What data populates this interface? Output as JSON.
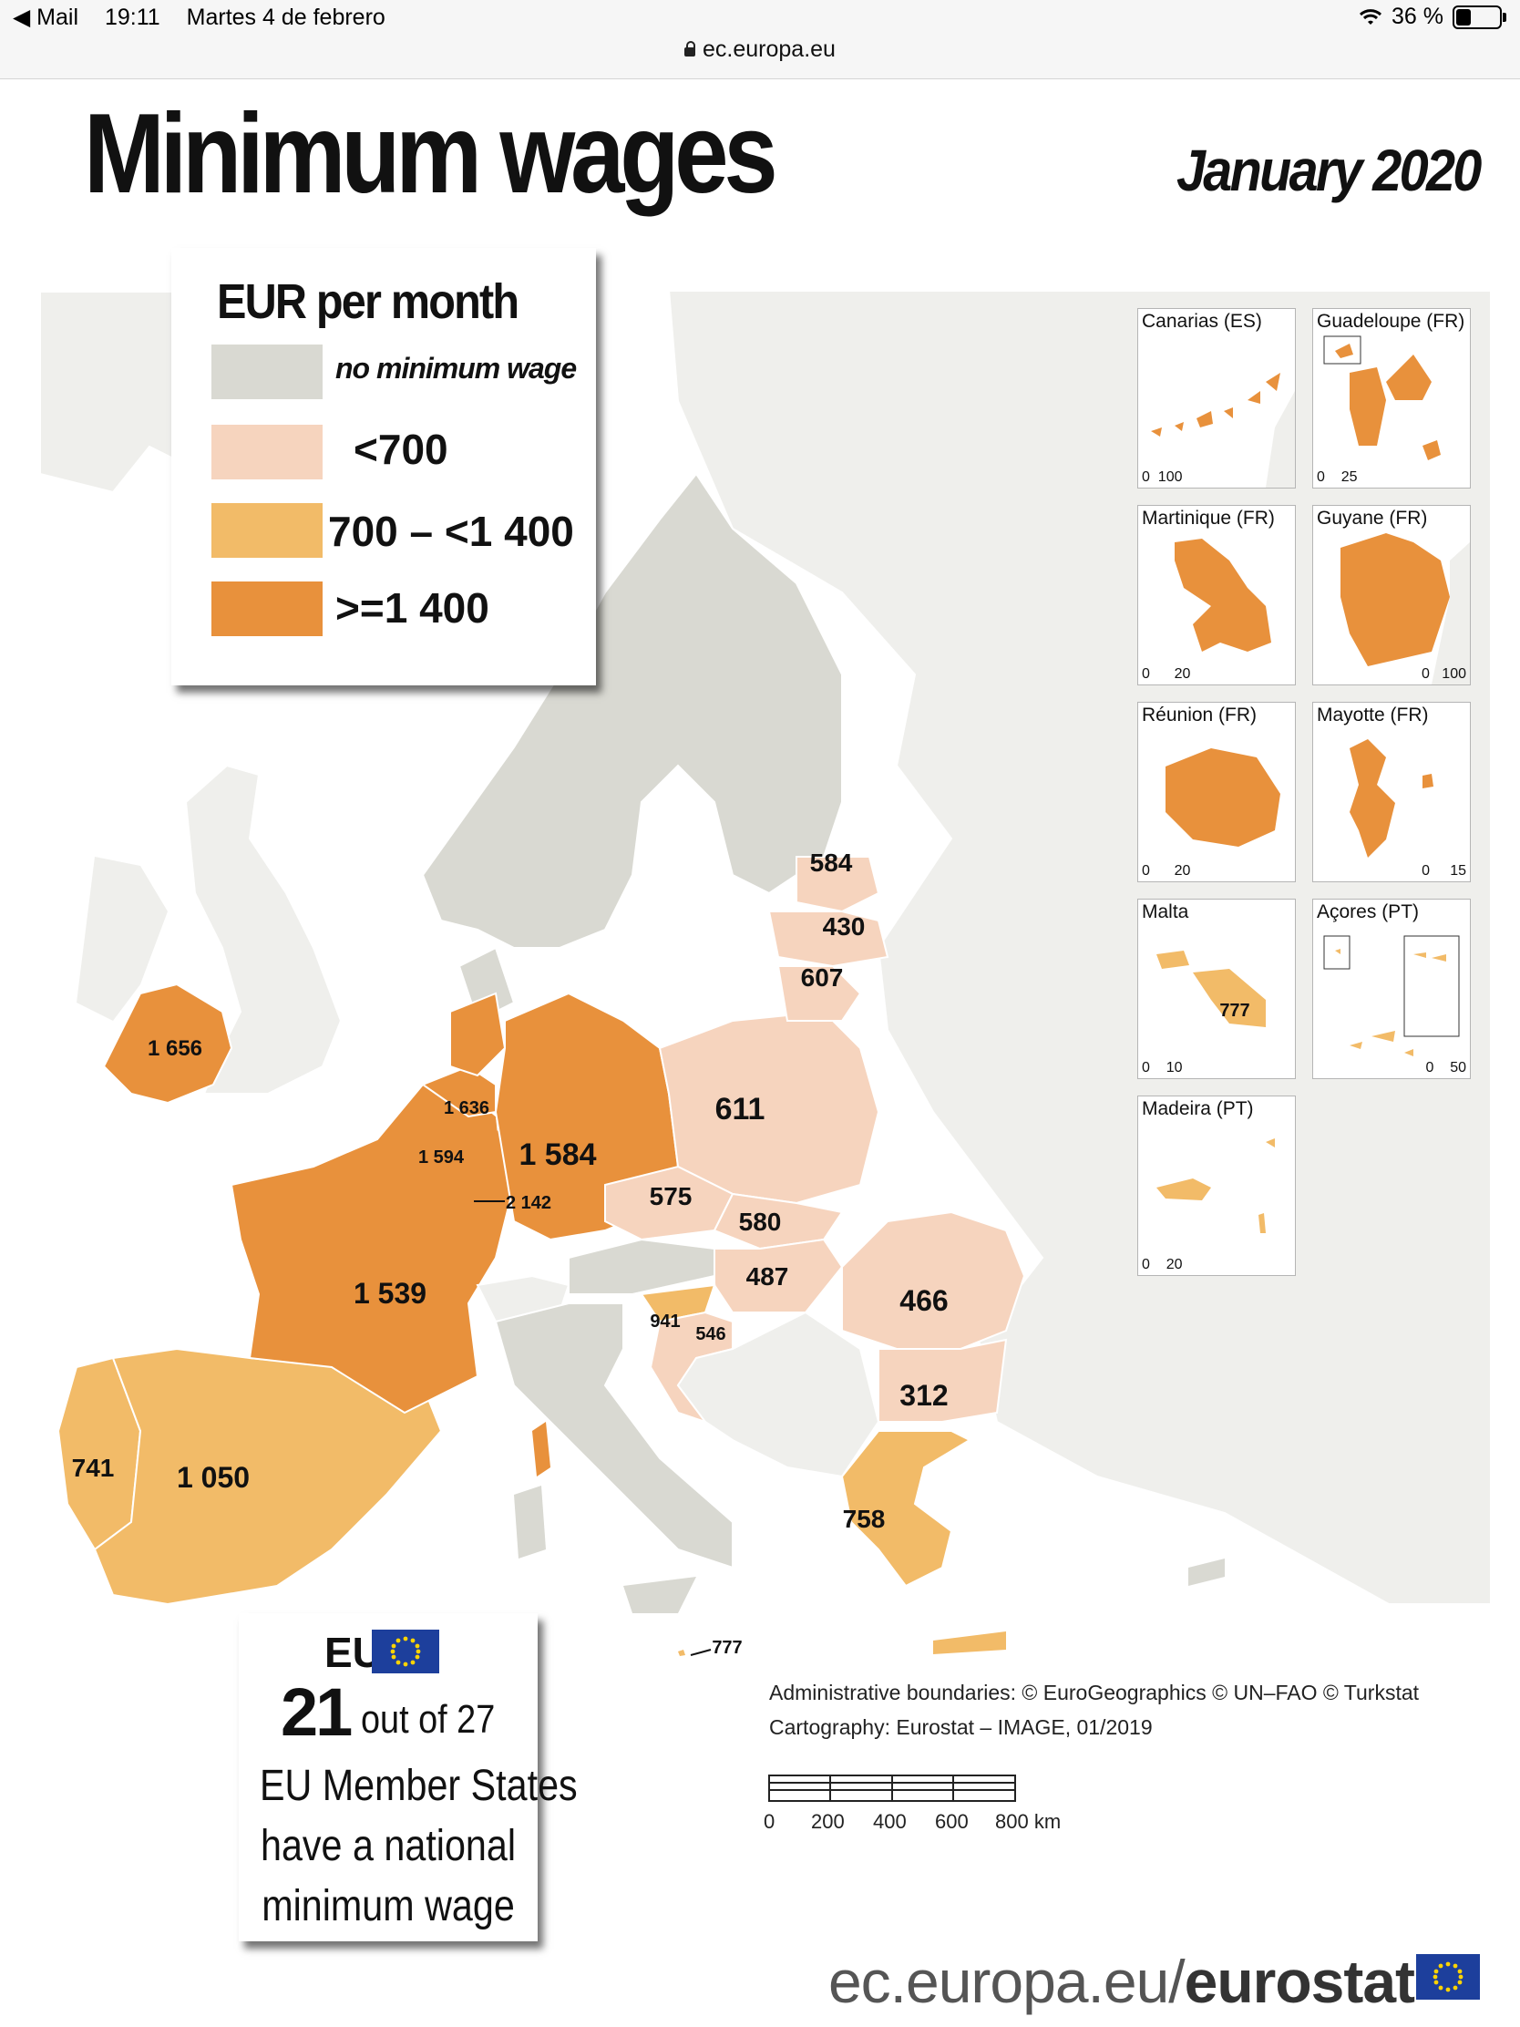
{
  "status_bar": {
    "back_app": "◀ Mail",
    "time": "19:11",
    "date": "Martes 4 de febrero",
    "battery": "36 %",
    "battery_level": 0.36,
    "url": "ec.europa.eu"
  },
  "header": {
    "title": "Minimum wages",
    "date": "January 2020"
  },
  "colors": {
    "no_minimum_wage": "#d9d9d2",
    "lt_700": "#f6d4be",
    "mid": "#f2bb68",
    "high": "#e8913c",
    "non_eu": "#efefec",
    "sea": "#ffffff"
  },
  "legend": {
    "title": "EUR per month",
    "items": [
      {
        "label": "no minimum wage",
        "color": "#d9d9d2"
      },
      {
        "label": "<700",
        "color": "#f6d4be"
      },
      {
        "label": "700 – <1 400",
        "color": "#f2bb68"
      },
      {
        "label": ">=1 400",
        "color": "#e8913c"
      }
    ]
  },
  "map_labels": [
    {
      "country": "Ireland",
      "value": "1 656"
    },
    {
      "country": "Netherlands",
      "value": "1 636"
    },
    {
      "country": "Belgium",
      "value": "1 594"
    },
    {
      "country": "Luxembourg",
      "value": "2 142"
    },
    {
      "country": "Germany",
      "value": "1 584"
    },
    {
      "country": "France",
      "value": "1 539"
    },
    {
      "country": "Spain",
      "value": "1 050"
    },
    {
      "country": "Portugal",
      "value": "741"
    },
    {
      "country": "Estonia",
      "value": "584"
    },
    {
      "country": "Latvia",
      "value": "430"
    },
    {
      "country": "Lithuania",
      "value": "607"
    },
    {
      "country": "Poland",
      "value": "611"
    },
    {
      "country": "Czechia",
      "value": "575"
    },
    {
      "country": "Slovakia",
      "value": "580"
    },
    {
      "country": "Hungary",
      "value": "487"
    },
    {
      "country": "Slovenia",
      "value": "941"
    },
    {
      "country": "Croatia",
      "value": "546"
    },
    {
      "country": "Romania",
      "value": "466"
    },
    {
      "country": "Bulgaria",
      "value": "312"
    },
    {
      "country": "Greece",
      "value": "758"
    },
    {
      "country": "Malta",
      "value": "777"
    }
  ],
  "insets": [
    {
      "title": "Canarias (ES)",
      "scale": [
        "0",
        "100"
      ]
    },
    {
      "title": "Guadeloupe (FR)",
      "scale": [
        "0",
        "25"
      ]
    },
    {
      "title": "Martinique (FR)",
      "scale": [
        "0",
        "20"
      ]
    },
    {
      "title": "Guyane (FR)",
      "scale": [
        "0",
        "100"
      ]
    },
    {
      "title": "Réunion (FR)",
      "scale": [
        "0",
        "20"
      ]
    },
    {
      "title": "Mayotte (FR)",
      "scale": [
        "0",
        "15"
      ]
    },
    {
      "title": "Malta",
      "scale": [
        "0",
        "10"
      ],
      "value": "777"
    },
    {
      "title": "Açores (PT)",
      "scale": [
        "0",
        "50"
      ]
    },
    {
      "title": "Madeira (PT)",
      "scale": [
        "0",
        "20"
      ]
    }
  ],
  "eu_box": {
    "eu": "EU",
    "count": "21",
    "of_total": "out of 27",
    "line2": "EU Member States",
    "line3": "have a national",
    "line4": "minimum wage"
  },
  "credits": {
    "line1": "Administrative boundaries: © EuroGeographics © UN–FAO © Turkstat",
    "line2": "Cartography: Eurostat – IMAGE, 01/2019"
  },
  "scale_bar": {
    "ticks": [
      "0",
      "200",
      "400",
      "600",
      "800 km"
    ]
  },
  "footer": {
    "url_prefix": "ec.europa.eu/",
    "brand": "eurostat"
  }
}
